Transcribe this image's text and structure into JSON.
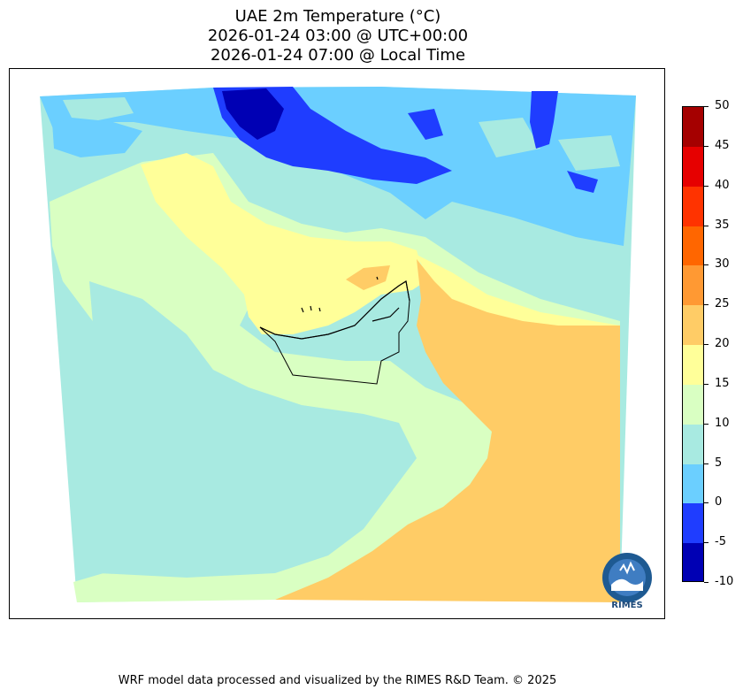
{
  "title": {
    "line1": "UAE 2m Temperature (°C)",
    "line2": "2026-01-24 03:00 @ UTC+00:00",
    "line3": "2026-01-24 07:00 @ Local Time"
  },
  "colorbar": {
    "levels": [
      "50",
      "45",
      "40",
      "35",
      "30",
      "25",
      "20",
      "15",
      "10",
      "5",
      "0",
      "-5",
      "-10"
    ],
    "colors": [
      "#a50000",
      "#e60000",
      "#ff3300",
      "#ff6600",
      "#ff9933",
      "#ffcc66",
      "#ffff99",
      "#d9ffc2",
      "#a8eae1",
      "#6bcfff",
      "#1f3dff",
      "#0000b4"
    ],
    "palette": {
      "very_cold": "#0000b4",
      "cold": "#1f3dff",
      "cool": "#6bcfff",
      "mild": "#a8eae1",
      "warmish": "#d9ffc2",
      "warm": "#ffff99",
      "hot": "#ffcc66",
      "hotter": "#ff9933",
      "border": "#000000"
    }
  },
  "logo": {
    "text": "RIMES",
    "icon": "rimes-logo-icon"
  },
  "footer": "WRF model data processed and visualized by the RIMES R&D Team. © 2025"
}
